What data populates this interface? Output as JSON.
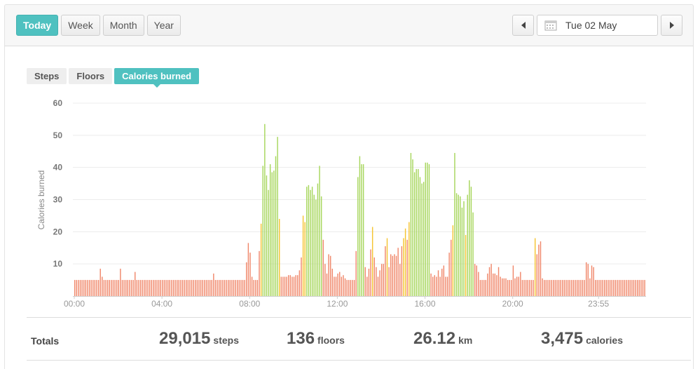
{
  "toolbar": {
    "periods": [
      "Today",
      "Week",
      "Month",
      "Year"
    ],
    "active_period": "Today",
    "date": "Tue 02 May"
  },
  "metric_tabs": [
    "Steps",
    "Floors",
    "Calories burned"
  ],
  "active_metric": "Calories burned",
  "colors": {
    "accent": "#4fc1c0",
    "low_bar": "#f0876a",
    "mid_bar": "#f5c431",
    "high_bar": "#a6d65b"
  },
  "chart_data": {
    "type": "bar",
    "ylabel": "Calories burned",
    "ylim": [
      0,
      60
    ],
    "yticks": [
      10,
      20,
      30,
      40,
      50,
      60
    ],
    "xtick_labels": [
      "00:00",
      "04:00",
      "08:00",
      "12:00",
      "16:00",
      "20:00",
      "23:55"
    ],
    "interval_minutes": 5,
    "grid": true,
    "values": [
      5,
      5,
      5,
      5,
      5,
      5,
      5,
      5,
      5,
      5,
      5,
      5,
      5,
      5,
      8.5,
      6,
      5,
      5,
      5,
      5,
      5,
      5,
      5,
      5,
      5,
      5,
      5,
      5,
      5,
      5,
      5,
      5,
      5,
      5,
      5,
      5,
      5,
      5,
      5,
      5,
      5,
      5,
      5,
      5,
      5,
      5,
      5,
      5,
      5,
      5,
      5,
      5,
      5,
      5,
      5,
      5,
      5,
      5,
      5,
      5,
      5,
      5,
      5,
      5,
      5,
      5,
      5,
      5,
      5,
      5,
      5,
      5,
      5,
      5,
      5,
      5,
      5,
      5,
      5,
      5,
      5,
      5,
      5,
      5,
      5,
      5,
      5,
      5,
      5,
      5,
      5,
      5,
      5,
      5,
      5,
      5,
      5,
      5,
      5,
      5,
      5,
      5,
      5,
      5,
      5,
      5,
      5,
      5,
      5,
      5,
      5,
      5,
      5,
      5,
      5,
      5,
      5,
      5,
      5,
      5,
      5,
      5,
      5,
      5,
      5,
      5,
      5,
      5,
      5,
      5,
      5,
      5,
      5,
      5,
      5,
      5,
      5,
      5,
      5,
      5,
      5,
      5,
      5,
      5,
      5,
      5,
      5,
      5,
      5,
      5,
      5,
      5,
      5,
      5,
      5,
      5,
      5,
      5,
      5,
      5,
      5,
      5,
      5,
      5,
      5,
      5,
      5,
      5,
      5,
      5,
      5,
      5,
      5,
      5,
      5,
      5,
      5,
      5,
      5,
      5,
      5,
      5,
      5,
      5,
      5,
      5,
      5,
      5,
      5,
      5,
      5,
      5,
      5,
      5,
      5,
      5,
      5,
      5,
      5,
      5,
      5,
      5,
      5,
      5,
      5,
      5,
      5,
      5,
      5,
      5,
      5,
      5,
      5,
      5,
      5,
      5,
      5,
      5,
      5,
      5,
      5,
      5,
      5,
      5,
      5,
      5,
      5,
      5,
      5,
      5,
      5,
      5,
      5,
      5,
      5,
      5,
      5,
      5,
      5,
      5,
      5,
      5,
      5,
      5,
      5,
      5,
      5,
      5,
      5,
      5,
      5,
      5,
      5,
      5,
      5,
      5,
      5,
      5,
      5,
      5,
      5,
      5,
      5,
      5,
      5,
      5,
      5,
      5,
      5,
      5,
      5,
      5,
      5,
      5,
      5,
      5,
      5,
      5,
      5,
      5,
      5,
      5,
      5,
      5,
      5,
      5,
      5,
      5,
      5,
      5,
      5,
      5,
      5,
      5,
      5,
      5,
      5,
      5,
      5,
      5,
      5,
      5,
      5,
      5,
      5,
      5,
      5,
      5,
      5,
      5,
      5,
      5,
      5
    ],
    "overrides": [
      [
        25,
        8.5
      ],
      [
        33,
        7.5
      ],
      [
        76,
        7
      ],
      [
        94,
        10.5
      ],
      [
        95,
        16.5
      ],
      [
        96,
        13.5
      ],
      [
        97,
        6
      ],
      [
        101,
        14
      ],
      [
        102,
        22.5
      ],
      [
        103,
        40.5
      ],
      [
        104,
        53.5
      ],
      [
        105,
        37.5
      ],
      [
        106,
        33
      ],
      [
        107,
        41
      ],
      [
        108,
        38.5
      ],
      [
        109,
        39
      ],
      [
        110,
        43.5
      ],
      [
        111,
        49.5
      ],
      [
        112,
        24
      ],
      [
        113,
        6
      ],
      [
        114,
        6
      ],
      [
        115,
        6
      ],
      [
        116,
        6
      ],
      [
        117,
        6.5
      ],
      [
        118,
        6.5
      ],
      [
        119,
        6
      ],
      [
        120,
        6
      ],
      [
        121,
        6.5
      ],
      [
        122,
        6.5
      ],
      [
        123,
        8
      ],
      [
        124,
        12
      ],
      [
        125,
        25
      ],
      [
        126,
        23
      ],
      [
        127,
        34
      ],
      [
        128,
        34.5
      ],
      [
        129,
        33
      ],
      [
        130,
        34
      ],
      [
        131,
        31.5
      ],
      [
        132,
        30
      ],
      [
        133,
        35
      ],
      [
        134,
        40.5
      ],
      [
        135,
        31
      ],
      [
        136,
        17.5
      ],
      [
        137,
        10
      ],
      [
        138,
        7
      ],
      [
        139,
        13
      ],
      [
        140,
        12.5
      ],
      [
        141,
        8.5
      ],
      [
        142,
        6
      ],
      [
        143,
        6
      ],
      [
        144,
        7
      ],
      [
        145,
        7.5
      ],
      [
        146,
        6
      ],
      [
        147,
        6.5
      ],
      [
        148,
        5.5
      ],
      [
        149,
        5
      ],
      [
        150,
        5
      ],
      [
        151,
        5
      ],
      [
        152,
        5
      ],
      [
        153,
        5
      ],
      [
        154,
        14
      ],
      [
        155,
        37
      ],
      [
        156,
        43.5
      ],
      [
        157,
        41
      ],
      [
        158,
        41
      ],
      [
        159,
        9
      ],
      [
        160,
        6
      ],
      [
        161,
        8.5
      ],
      [
        162,
        14.5
      ],
      [
        163,
        21.5
      ],
      [
        164,
        12
      ],
      [
        165,
        9
      ],
      [
        166,
        6
      ],
      [
        167,
        8
      ],
      [
        168,
        10
      ],
      [
        169,
        10
      ],
      [
        170,
        15.5
      ],
      [
        171,
        18
      ],
      [
        172,
        9
      ],
      [
        173,
        13
      ],
      [
        174,
        12.5
      ],
      [
        175,
        13
      ],
      [
        176,
        12.5
      ],
      [
        177,
        15
      ],
      [
        178,
        10
      ],
      [
        179,
        15.5
      ],
      [
        180,
        18
      ],
      [
        181,
        21
      ],
      [
        182,
        17.5
      ],
      [
        183,
        23
      ],
      [
        184,
        44.5
      ],
      [
        185,
        42.5
      ],
      [
        186,
        38.5
      ],
      [
        187,
        39.5
      ],
      [
        188,
        39.5
      ],
      [
        189,
        37
      ],
      [
        190,
        35
      ],
      [
        191,
        35.5
      ],
      [
        192,
        41.5
      ],
      [
        193,
        41.5
      ],
      [
        194,
        41
      ],
      [
        195,
        7
      ],
      [
        196,
        6
      ],
      [
        197,
        6.5
      ],
      [
        198,
        6
      ],
      [
        199,
        8
      ],
      [
        200,
        6
      ],
      [
        201,
        8.5
      ],
      [
        202,
        9.5
      ],
      [
        203,
        6
      ],
      [
        204,
        6
      ],
      [
        205,
        13.5
      ],
      [
        206,
        17.5
      ],
      [
        207,
        22
      ],
      [
        208,
        44.5
      ],
      [
        209,
        32
      ],
      [
        210,
        31.5
      ],
      [
        211,
        31
      ],
      [
        212,
        27.5
      ],
      [
        213,
        29.5
      ],
      [
        214,
        19
      ],
      [
        215,
        31.5
      ],
      [
        216,
        36
      ],
      [
        217,
        34
      ],
      [
        218,
        26
      ],
      [
        219,
        10
      ],
      [
        220,
        9.5
      ],
      [
        221,
        7.5
      ],
      [
        226,
        7
      ],
      [
        227,
        9
      ],
      [
        228,
        10
      ],
      [
        229,
        7
      ],
      [
        230,
        7
      ],
      [
        231,
        6.5
      ],
      [
        232,
        9
      ],
      [
        233,
        6
      ],
      [
        234,
        5.5
      ],
      [
        235,
        5.5
      ],
      [
        236,
        5.5
      ],
      [
        240,
        9.5
      ],
      [
        241,
        5.5
      ],
      [
        242,
        6
      ],
      [
        243,
        6
      ],
      [
        244,
        7.5
      ],
      [
        252,
        18
      ],
      [
        253,
        13
      ],
      [
        254,
        16
      ],
      [
        255,
        17
      ],
      [
        256,
        5.5
      ],
      [
        280,
        10.5
      ],
      [
        281,
        10
      ],
      [
        282,
        5.5
      ],
      [
        283,
        9.5
      ],
      [
        284,
        9
      ],
      [
        285,
        5
      ]
    ]
  },
  "totals": {
    "label": "Totals",
    "items": [
      {
        "value": "29,015",
        "unit": "steps"
      },
      {
        "value": "136",
        "unit": "floors"
      },
      {
        "value": "26.12",
        "unit": "km"
      },
      {
        "value": "3,475",
        "unit": "calories"
      }
    ]
  }
}
